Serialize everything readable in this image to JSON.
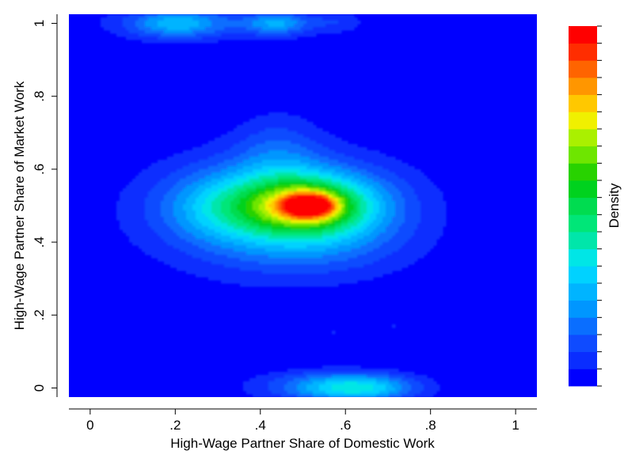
{
  "chart_data": {
    "type": "heatmap",
    "title": "",
    "xlabel": "High-Wage Partner Share of Domestic Work",
    "ylabel": "High-Wage Partner Share of Market Work",
    "xlim": [
      -0.05,
      1.05
    ],
    "ylim": [
      -0.025,
      1.025
    ],
    "x_ticks": [
      {
        "value": 0,
        "label": "0"
      },
      {
        "value": 0.2,
        "label": ".2"
      },
      {
        "value": 0.4,
        "label": ".4"
      },
      {
        "value": 0.6,
        "label": ".6"
      },
      {
        "value": 0.8,
        "label": ".8"
      },
      {
        "value": 1,
        "label": "1"
      }
    ],
    "y_ticks": [
      {
        "value": 0,
        "label": "0"
      },
      {
        "value": 0.2,
        "label": ".2"
      },
      {
        "value": 0.4,
        "label": ".4"
      },
      {
        "value": 0.6,
        "label": ".6"
      },
      {
        "value": 0.8,
        "label": ".8"
      },
      {
        "value": 1,
        "label": "1"
      }
    ],
    "grid": true,
    "colorbar": {
      "label": "Density",
      "position": "right",
      "levels": 20,
      "colors": [
        "#0000ff",
        "#0a2dff",
        "#0f4bff",
        "#0a6eff",
        "#0096ff",
        "#00b4ff",
        "#00d2ff",
        "#00e6e6",
        "#00e6aa",
        "#00e678",
        "#00dc50",
        "#00d21e",
        "#28d200",
        "#6ee600",
        "#aaf000",
        "#f0f000",
        "#ffc800",
        "#ff9600",
        "#ff6400",
        "#ff2d00",
        "#ff0000"
      ]
    },
    "density_modes": [
      {
        "x": 0.52,
        "y": 0.5,
        "level": 1.0
      },
      {
        "x": 0.63,
        "y": 0.0,
        "level": 0.42
      },
      {
        "x": 0.2,
        "y": 1.0,
        "level": 0.3
      },
      {
        "x": 0.44,
        "y": 1.0,
        "level": 0.28
      }
    ]
  }
}
